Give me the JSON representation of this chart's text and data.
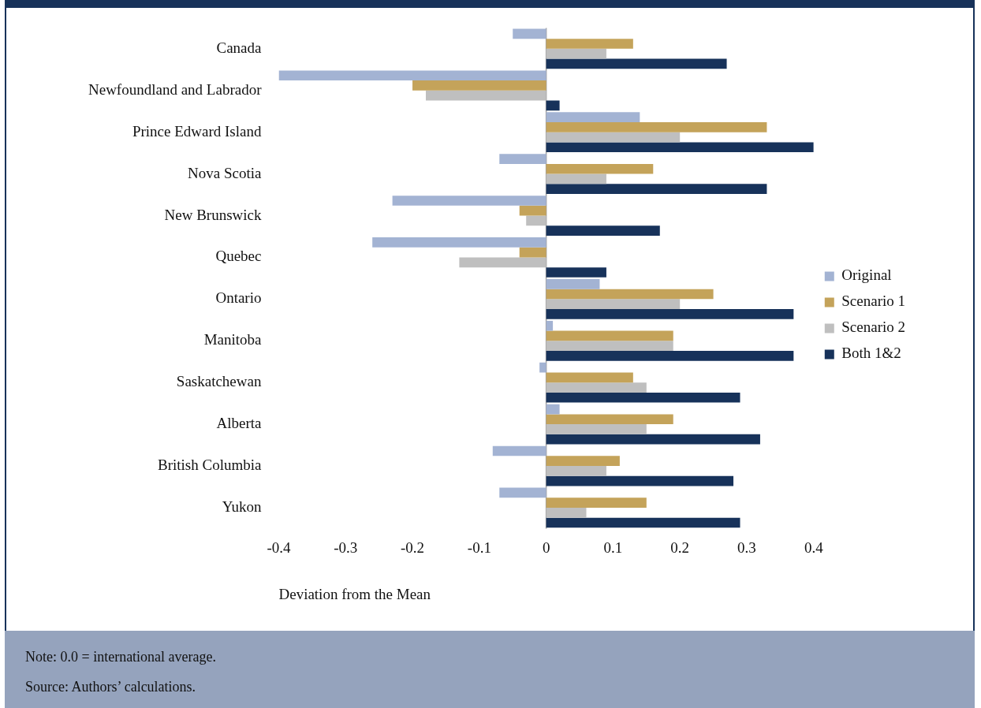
{
  "chart_data": {
    "type": "bar",
    "orientation": "horizontal",
    "xlabel": "Deviation from the Mean",
    "categories": [
      "Canada",
      "Newfoundland and Labrador",
      "Prince Edward Island",
      "Nova Scotia",
      "New Brunswick",
      "Quebec",
      "Ontario",
      "Manitoba",
      "Saskatchewan",
      "Alberta",
      "British Columbia",
      "Yukon"
    ],
    "series": [
      {
        "name": "Original",
        "color": "#a3b3d3",
        "values": [
          -0.05,
          -0.4,
          0.14,
          -0.07,
          -0.23,
          -0.26,
          0.08,
          0.01,
          -0.01,
          0.02,
          -0.08,
          -0.07
        ]
      },
      {
        "name": "Scenario 1",
        "color": "#c4a35a",
        "values": [
          0.13,
          -0.2,
          0.33,
          0.16,
          -0.04,
          -0.04,
          0.25,
          0.19,
          0.13,
          0.19,
          0.11,
          0.15
        ]
      },
      {
        "name": "Scenario 2",
        "color": "#bfbfbf",
        "values": [
          0.09,
          -0.18,
          0.2,
          0.09,
          -0.03,
          -0.13,
          0.2,
          0.19,
          0.15,
          0.15,
          0.09,
          0.06
        ]
      },
      {
        "name": "Both 1&2",
        "color": "#17325a",
        "values": [
          0.27,
          0.02,
          0.4,
          0.33,
          0.17,
          0.09,
          0.37,
          0.37,
          0.29,
          0.32,
          0.28,
          0.29
        ]
      }
    ],
    "xlim": [
      -0.4,
      0.4
    ],
    "xticks": [
      -0.4,
      -0.3,
      -0.2,
      -0.1,
      0,
      0.1,
      0.2,
      0.3,
      0.4
    ],
    "grid": false,
    "legend": "right",
    "ref_lines": [
      {
        "axis": "x",
        "value": 0,
        "color": "#a0a0a0"
      }
    ],
    "annotations": [
      "Note: 0.0 = international average.",
      "Source: Authors’ calculations."
    ]
  }
}
